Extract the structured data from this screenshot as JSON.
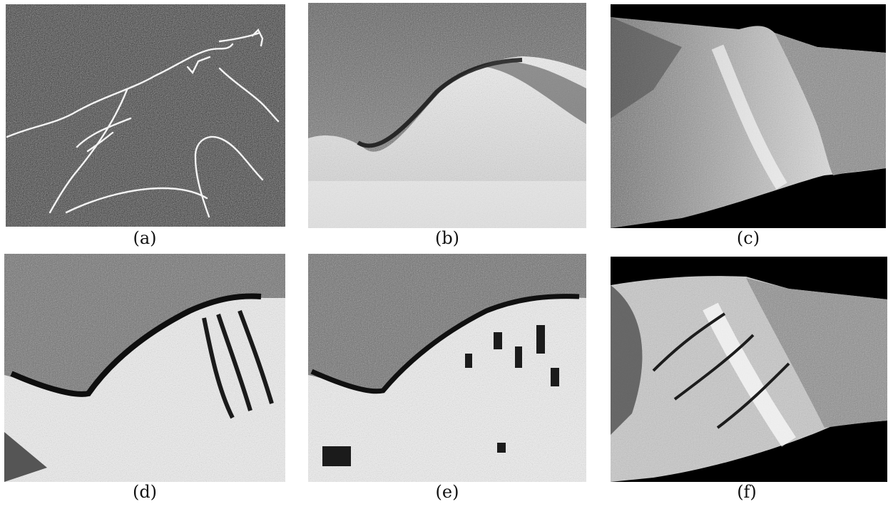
{
  "figure": {
    "panels": [
      {
        "id": "a",
        "caption": "(a)"
      },
      {
        "id": "b",
        "caption": "(b)"
      },
      {
        "id": "c",
        "caption": "(c)"
      },
      {
        "id": "d",
        "caption": "(d)"
      },
      {
        "id": "e",
        "caption": "(e)"
      },
      {
        "id": "f",
        "caption": "(f)"
      }
    ]
  }
}
